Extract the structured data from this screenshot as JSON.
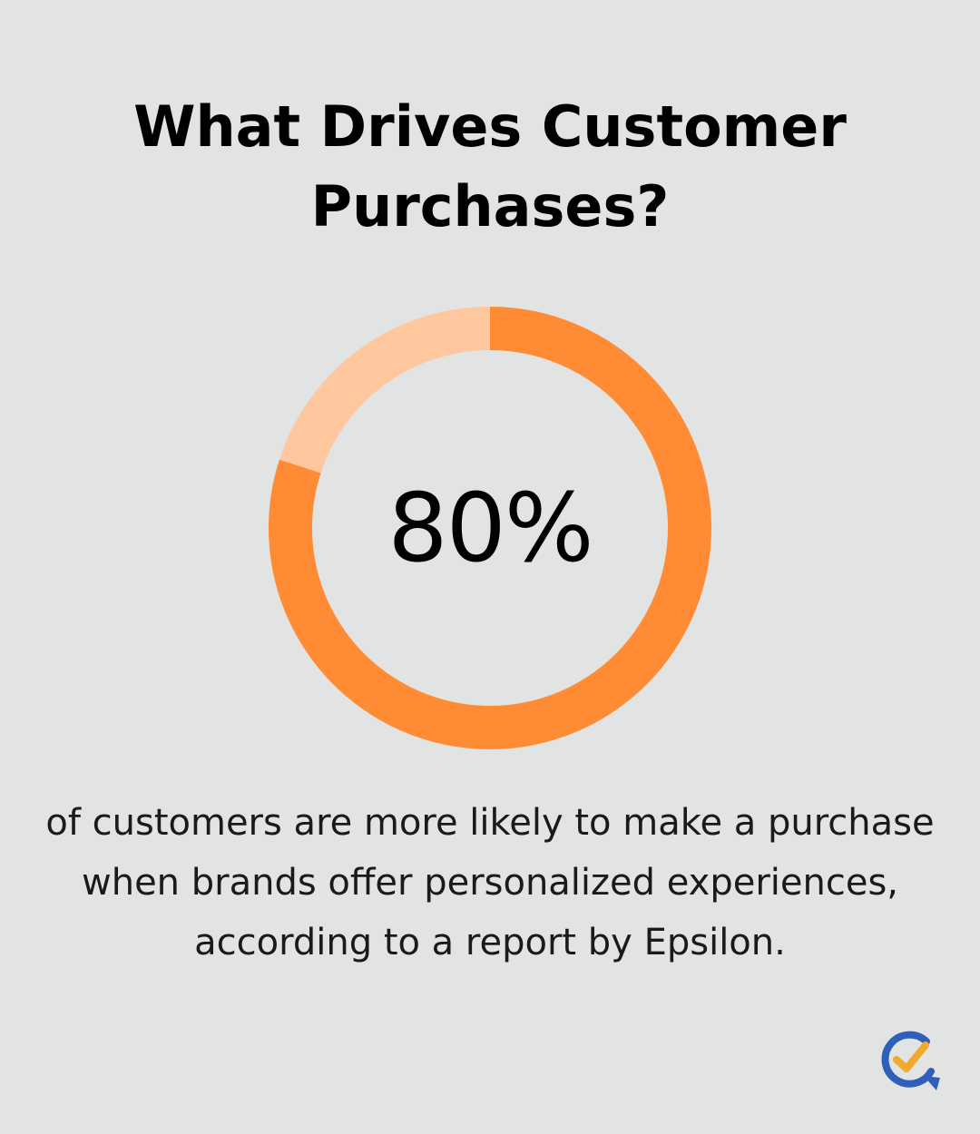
{
  "chart_data": {
    "type": "pie",
    "title": "What Drives Customer Purchases?",
    "center_label": "80%",
    "value": 80,
    "slices": [
      {
        "value": 80,
        "color": "#ff8c35"
      },
      {
        "value": 20,
        "color": "#ffc79d"
      }
    ],
    "caption": "of customers are more likely to make a purchase when brands offer personalized experiences, according to a report by Epsilon."
  },
  "colors": {
    "background": "#e2e3e3",
    "accent": "#ff8c35",
    "accent_light": "#ffc79d",
    "logo_blue": "#2f5fb8",
    "logo_gold": "#f0a92c"
  },
  "logo": {
    "icon": "chat-bubble-checkmark-icon"
  }
}
